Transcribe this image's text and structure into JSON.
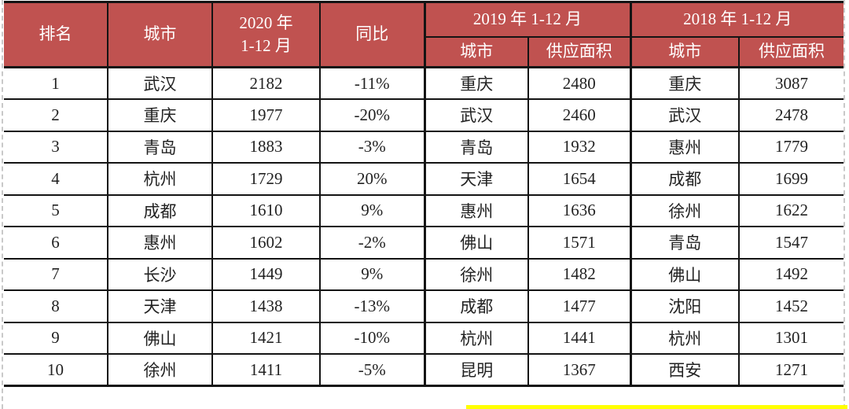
{
  "page": {
    "header_red": "#c05250",
    "border_black": "#141414",
    "highlight_yellow": "#ffff00",
    "dashed_line_gray": "#c9c9c9"
  },
  "table": {
    "header": {
      "rank": "排名",
      "city_2020": "城市",
      "period_2020_line1": "2020 年",
      "period_2020_line2": "1-12 月",
      "yoy": "同比",
      "group_2019": "2019 年 1-12 月",
      "group_2018": "2018 年 1-12 月",
      "sub_city_2019": "城市",
      "sub_supply_2019": "供应面积",
      "sub_city_2018": "城市",
      "sub_supply_2018": "供应面积"
    },
    "cell_names": [
      "rank-cell",
      "city-2020-cell",
      "supply-2020-cell",
      "yoy-cell",
      "city-2019-cell",
      "supply-2019-cell",
      "city-2018-cell",
      "supply-2018-cell"
    ]
  },
  "chart_data": {
    "type": "table",
    "title": "",
    "column_groups": [
      {
        "label": "排名",
        "colspan": 1
      },
      {
        "label": "城市",
        "colspan": 1
      },
      {
        "label": "2020 年 1-12 月",
        "colspan": 1
      },
      {
        "label": "同比",
        "colspan": 1
      },
      {
        "label": "2019 年 1-12 月",
        "colspan": 2,
        "subcolumns": [
          "城市",
          "供应面积"
        ]
      },
      {
        "label": "2018 年 1-12 月",
        "colspan": 2,
        "subcolumns": [
          "城市",
          "供应面积"
        ]
      }
    ],
    "rows": [
      [
        "1",
        "武汉",
        "2182",
        "-11%",
        "重庆",
        "2480",
        "重庆",
        "3087"
      ],
      [
        "2",
        "重庆",
        "1977",
        "-20%",
        "武汉",
        "2460",
        "武汉",
        "2478"
      ],
      [
        "3",
        "青岛",
        "1883",
        "-3%",
        "青岛",
        "1932",
        "惠州",
        "1779"
      ],
      [
        "4",
        "杭州",
        "1729",
        "20%",
        "天津",
        "1654",
        "成都",
        "1699"
      ],
      [
        "5",
        "成都",
        "1610",
        "9%",
        "惠州",
        "1636",
        "徐州",
        "1622"
      ],
      [
        "6",
        "惠州",
        "1602",
        "-2%",
        "佛山",
        "1571",
        "青岛",
        "1547"
      ],
      [
        "7",
        "长沙",
        "1449",
        "9%",
        "徐州",
        "1482",
        "佛山",
        "1492"
      ],
      [
        "8",
        "天津",
        "1438",
        "-13%",
        "成都",
        "1477",
        "沈阳",
        "1452"
      ],
      [
        "9",
        "佛山",
        "1421",
        "-10%",
        "杭州",
        "1441",
        "杭州",
        "1301"
      ],
      [
        "10",
        "徐州",
        "1411",
        "-5%",
        "昆明",
        "1367",
        "西安",
        "1271"
      ]
    ]
  }
}
